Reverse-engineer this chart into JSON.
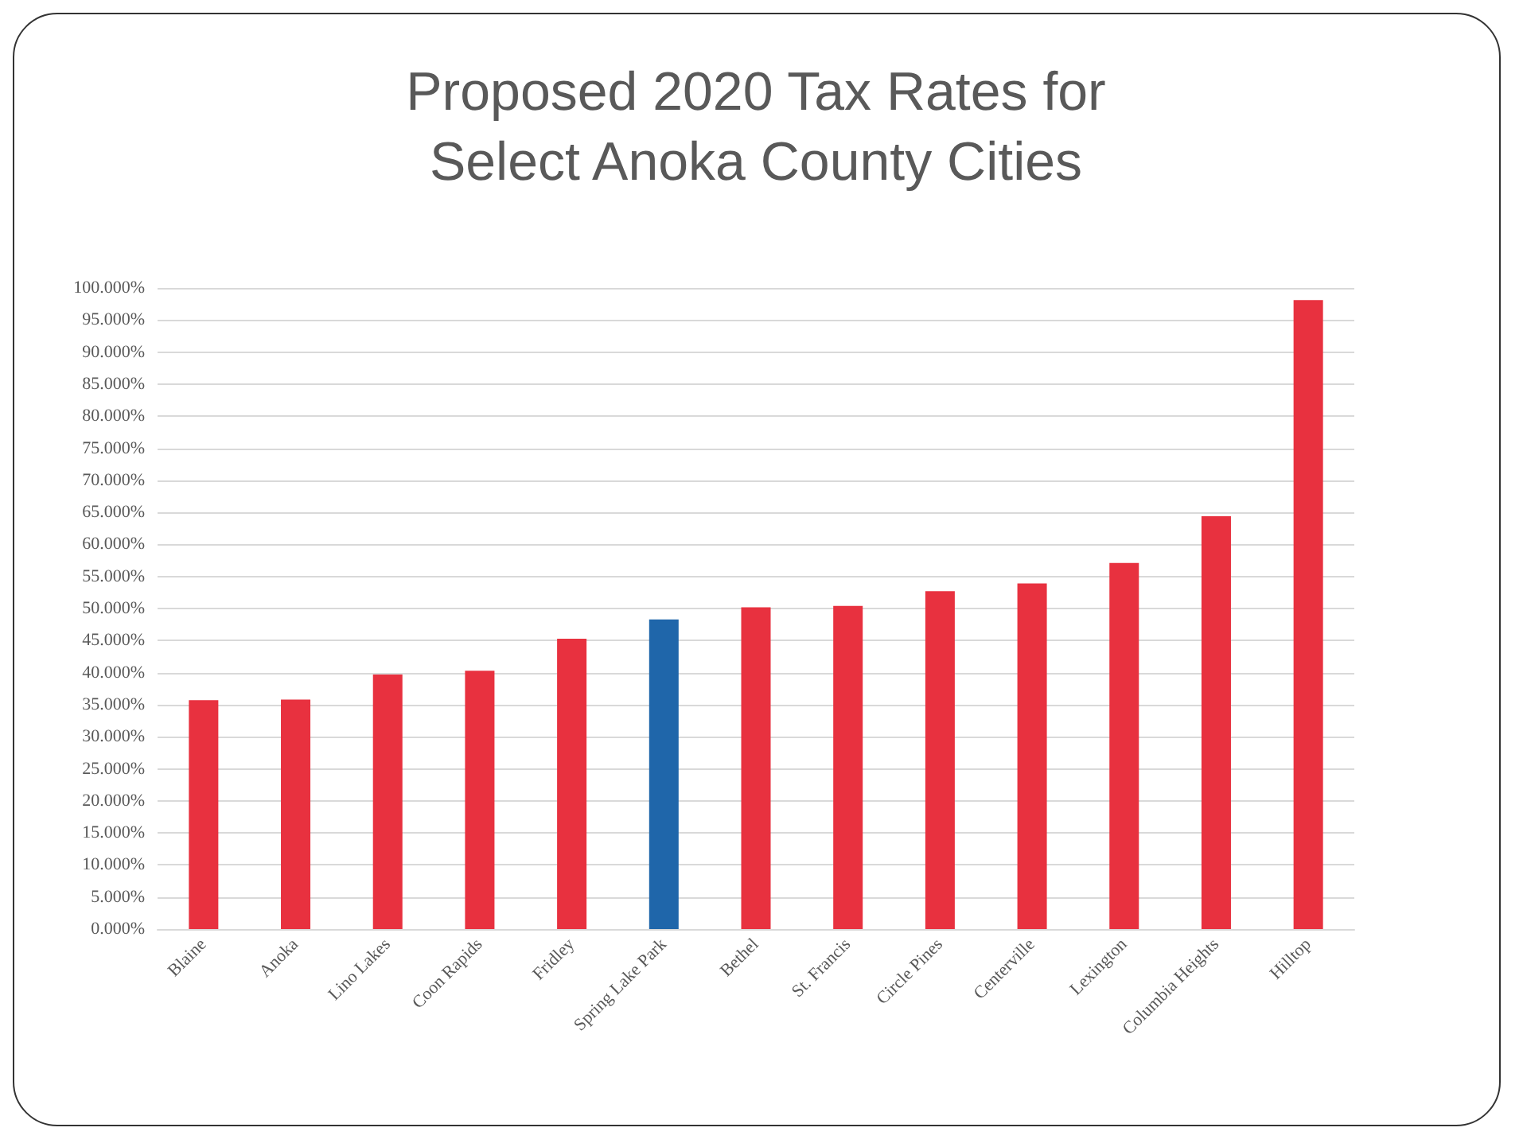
{
  "chart_data": {
    "type": "bar",
    "title": "Proposed 2020 Tax Rates for\nSelect Anoka County Cities",
    "categories": [
      "Blaine",
      "Anoka",
      "Lino Lakes",
      "Coon Rapids",
      "Fridley",
      "Spring Lake Park",
      "Bethel",
      "St. Francis",
      "Circle Pines",
      "Centerville",
      "Lexington",
      "Columbia Heights",
      "Hilltop"
    ],
    "values": [
      35.7,
      35.8,
      39.7,
      40.3,
      45.3,
      48.3,
      50.2,
      50.4,
      52.7,
      53.9,
      57.1,
      64.4,
      98.1
    ],
    "colors": [
      "#e8313f",
      "#e8313f",
      "#e8313f",
      "#e8313f",
      "#e8313f",
      "#1f66aa",
      "#e8313f",
      "#e8313f",
      "#e8313f",
      "#e8313f",
      "#e8313f",
      "#e8313f",
      "#e8313f"
    ],
    "ylim": [
      0,
      100
    ],
    "yticks": [
      {
        "value": 0,
        "label": "0.000%"
      },
      {
        "value": 5,
        "label": "5.000%"
      },
      {
        "value": 10,
        "label": "10.000%"
      },
      {
        "value": 15,
        "label": "15.000%"
      },
      {
        "value": 20,
        "label": "20.000%"
      },
      {
        "value": 25,
        "label": "25.000%"
      },
      {
        "value": 30,
        "label": "30.000%"
      },
      {
        "value": 35,
        "label": "35.000%"
      },
      {
        "value": 40,
        "label": "40.000%"
      },
      {
        "value": 45,
        "label": "45.000%"
      },
      {
        "value": 50,
        "label": "50.000%"
      },
      {
        "value": 55,
        "label": "55.000%"
      },
      {
        "value": 60,
        "label": "60.000%"
      },
      {
        "value": 65,
        "label": "65.000%"
      },
      {
        "value": 70,
        "label": "70.000%"
      },
      {
        "value": 75,
        "label": "75.000%"
      },
      {
        "value": 80,
        "label": "80.000%"
      },
      {
        "value": 85,
        "label": "85.000%"
      },
      {
        "value": 90,
        "label": "90.000%"
      },
      {
        "value": 95,
        "label": "95.000%"
      },
      {
        "value": 100,
        "label": "100.000%"
      }
    ],
    "grid": "y"
  }
}
